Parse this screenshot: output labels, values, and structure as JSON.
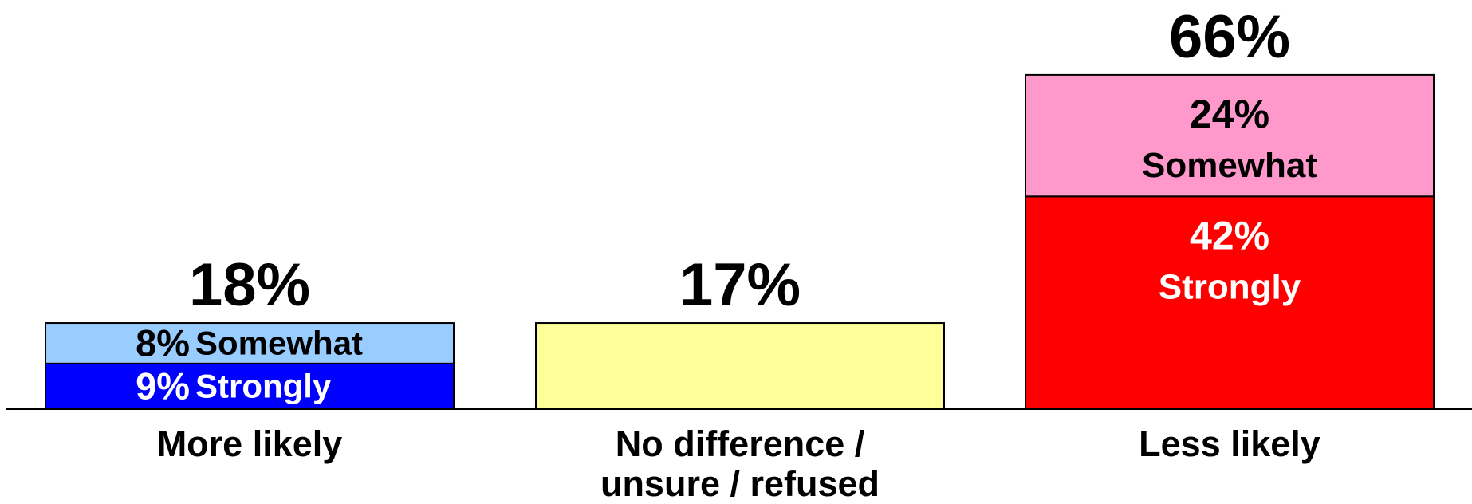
{
  "chart_data": {
    "type": "stacked_bar",
    "categories": [
      "More likely",
      "No difference / unsure / refused",
      "Less likely"
    ],
    "series": [
      {
        "name": "Strongly",
        "color": "#0000ff",
        "text_color": "#ffffff",
        "values": [
          9,
          null,
          42
        ],
        "value_labels": [
          "9%",
          null,
          "42%"
        ]
      },
      {
        "name": "Somewhat",
        "color": "#99ccff",
        "text_color": "#000000",
        "values": [
          8,
          null,
          null
        ],
        "value_labels": [
          "8%",
          null,
          null
        ]
      },
      {
        "color": "#ffff99",
        "values": [
          null,
          17,
          null
        ]
      },
      {
        "name": "Somewhat",
        "color": "#ff99cc",
        "text_color": "#000000",
        "values": [
          null,
          null,
          24
        ],
        "value_labels": [
          null,
          null,
          "24%"
        ]
      }
    ],
    "series_colors_by_category": {
      "2": {
        "0": "#ff0000"
      }
    },
    "totals": [
      18,
      17,
      66
    ],
    "total_labels": [
      "18%",
      "17%",
      "66%"
    ]
  }
}
